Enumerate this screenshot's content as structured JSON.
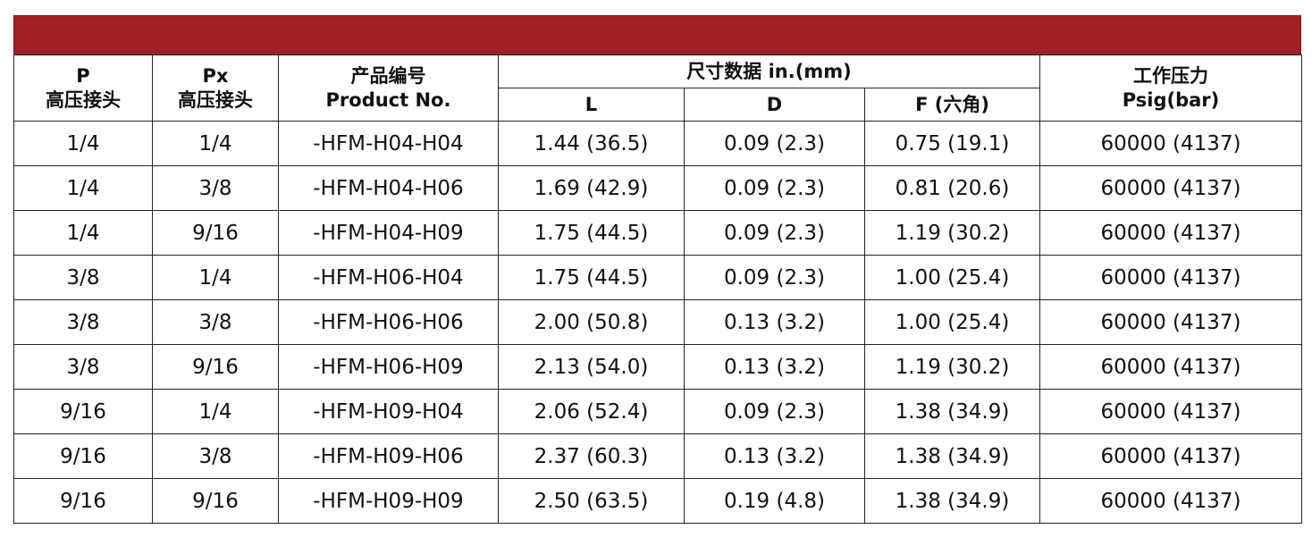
{
  "colors": {
    "banner": "#9e2126",
    "text": "#111111",
    "border": "#222222"
  },
  "table": {
    "headers": {
      "p": {
        "line1": "P",
        "line2": "高压接头"
      },
      "px": {
        "line1": "Px",
        "line2": "高压接头"
      },
      "product": {
        "line1": "产品编号",
        "line2": "Product No."
      },
      "dimensions": "尺寸数据  in.(mm)",
      "l": "L",
      "d": "D",
      "f": "F (六角)",
      "pressure": {
        "line1": "工作压力",
        "line2": "Psig(bar)"
      }
    },
    "rows": [
      {
        "p": "1/4",
        "px": "1/4",
        "product": "-HFM-H04-H04",
        "l": "1.44 (36.5)",
        "d": "0.09 (2.3)",
        "f": "0.75 (19.1)",
        "pressure": "60000 (4137)"
      },
      {
        "p": "1/4",
        "px": "3/8",
        "product": "-HFM-H04-H06",
        "l": "1.69 (42.9)",
        "d": "0.09 (2.3)",
        "f": "0.81 (20.6)",
        "pressure": "60000 (4137)"
      },
      {
        "p": "1/4",
        "px": "9/16",
        "product": "-HFM-H04-H09",
        "l": "1.75 (44.5)",
        "d": "0.09 (2.3)",
        "f": "1.19 (30.2)",
        "pressure": "60000 (4137)"
      },
      {
        "p": "3/8",
        "px": "1/4",
        "product": "-HFM-H06-H04",
        "l": "1.75 (44.5)",
        "d": "0.09 (2.3)",
        "f": "1.00 (25.4)",
        "pressure": "60000 (4137)"
      },
      {
        "p": "3/8",
        "px": "3/8",
        "product": "-HFM-H06-H06",
        "l": "2.00 (50.8)",
        "d": "0.13 (3.2)",
        "f": "1.00 (25.4)",
        "pressure": "60000 (4137)"
      },
      {
        "p": "3/8",
        "px": "9/16",
        "product": "-HFM-H06-H09",
        "l": "2.13 (54.0)",
        "d": "0.13 (3.2)",
        "f": "1.19 (30.2)",
        "pressure": "60000 (4137)"
      },
      {
        "p": "9/16",
        "px": "1/4",
        "product": "-HFM-H09-H04",
        "l": "2.06 (52.4)",
        "d": "0.09 (2.3)",
        "f": "1.38 (34.9)",
        "pressure": "60000 (4137)"
      },
      {
        "p": "9/16",
        "px": "3/8",
        "product": "-HFM-H09-H06",
        "l": "2.37 (60.3)",
        "d": "0.13 (3.2)",
        "f": "1.38 (34.9)",
        "pressure": "60000 (4137)"
      },
      {
        "p": "9/16",
        "px": "9/16",
        "product": "-HFM-H09-H09",
        "l": "2.50 (63.5)",
        "d": "0.19 (4.8)",
        "f": "1.38 (34.9)",
        "pressure": "60000 (4137)"
      }
    ]
  }
}
